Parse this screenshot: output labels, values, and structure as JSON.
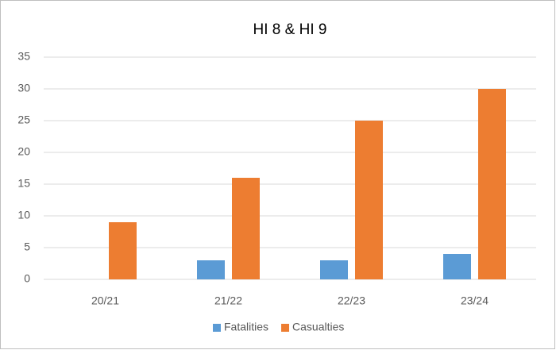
{
  "chart_data": {
    "type": "bar",
    "title": "HI 8 & HI 9",
    "categories": [
      "20/21",
      "21/22",
      "22/23",
      "23/24"
    ],
    "series": [
      {
        "name": "Fatalities",
        "color": "#5b9bd5",
        "values": [
          0,
          3,
          3,
          4
        ]
      },
      {
        "name": "Casualties",
        "color": "#ed7d31",
        "values": [
          9,
          16,
          25,
          30
        ]
      }
    ],
    "ylim": [
      0,
      35
    ],
    "yticks": [
      0,
      5,
      10,
      15,
      20,
      25,
      30,
      35
    ],
    "grid": true,
    "legend": "bottom"
  }
}
